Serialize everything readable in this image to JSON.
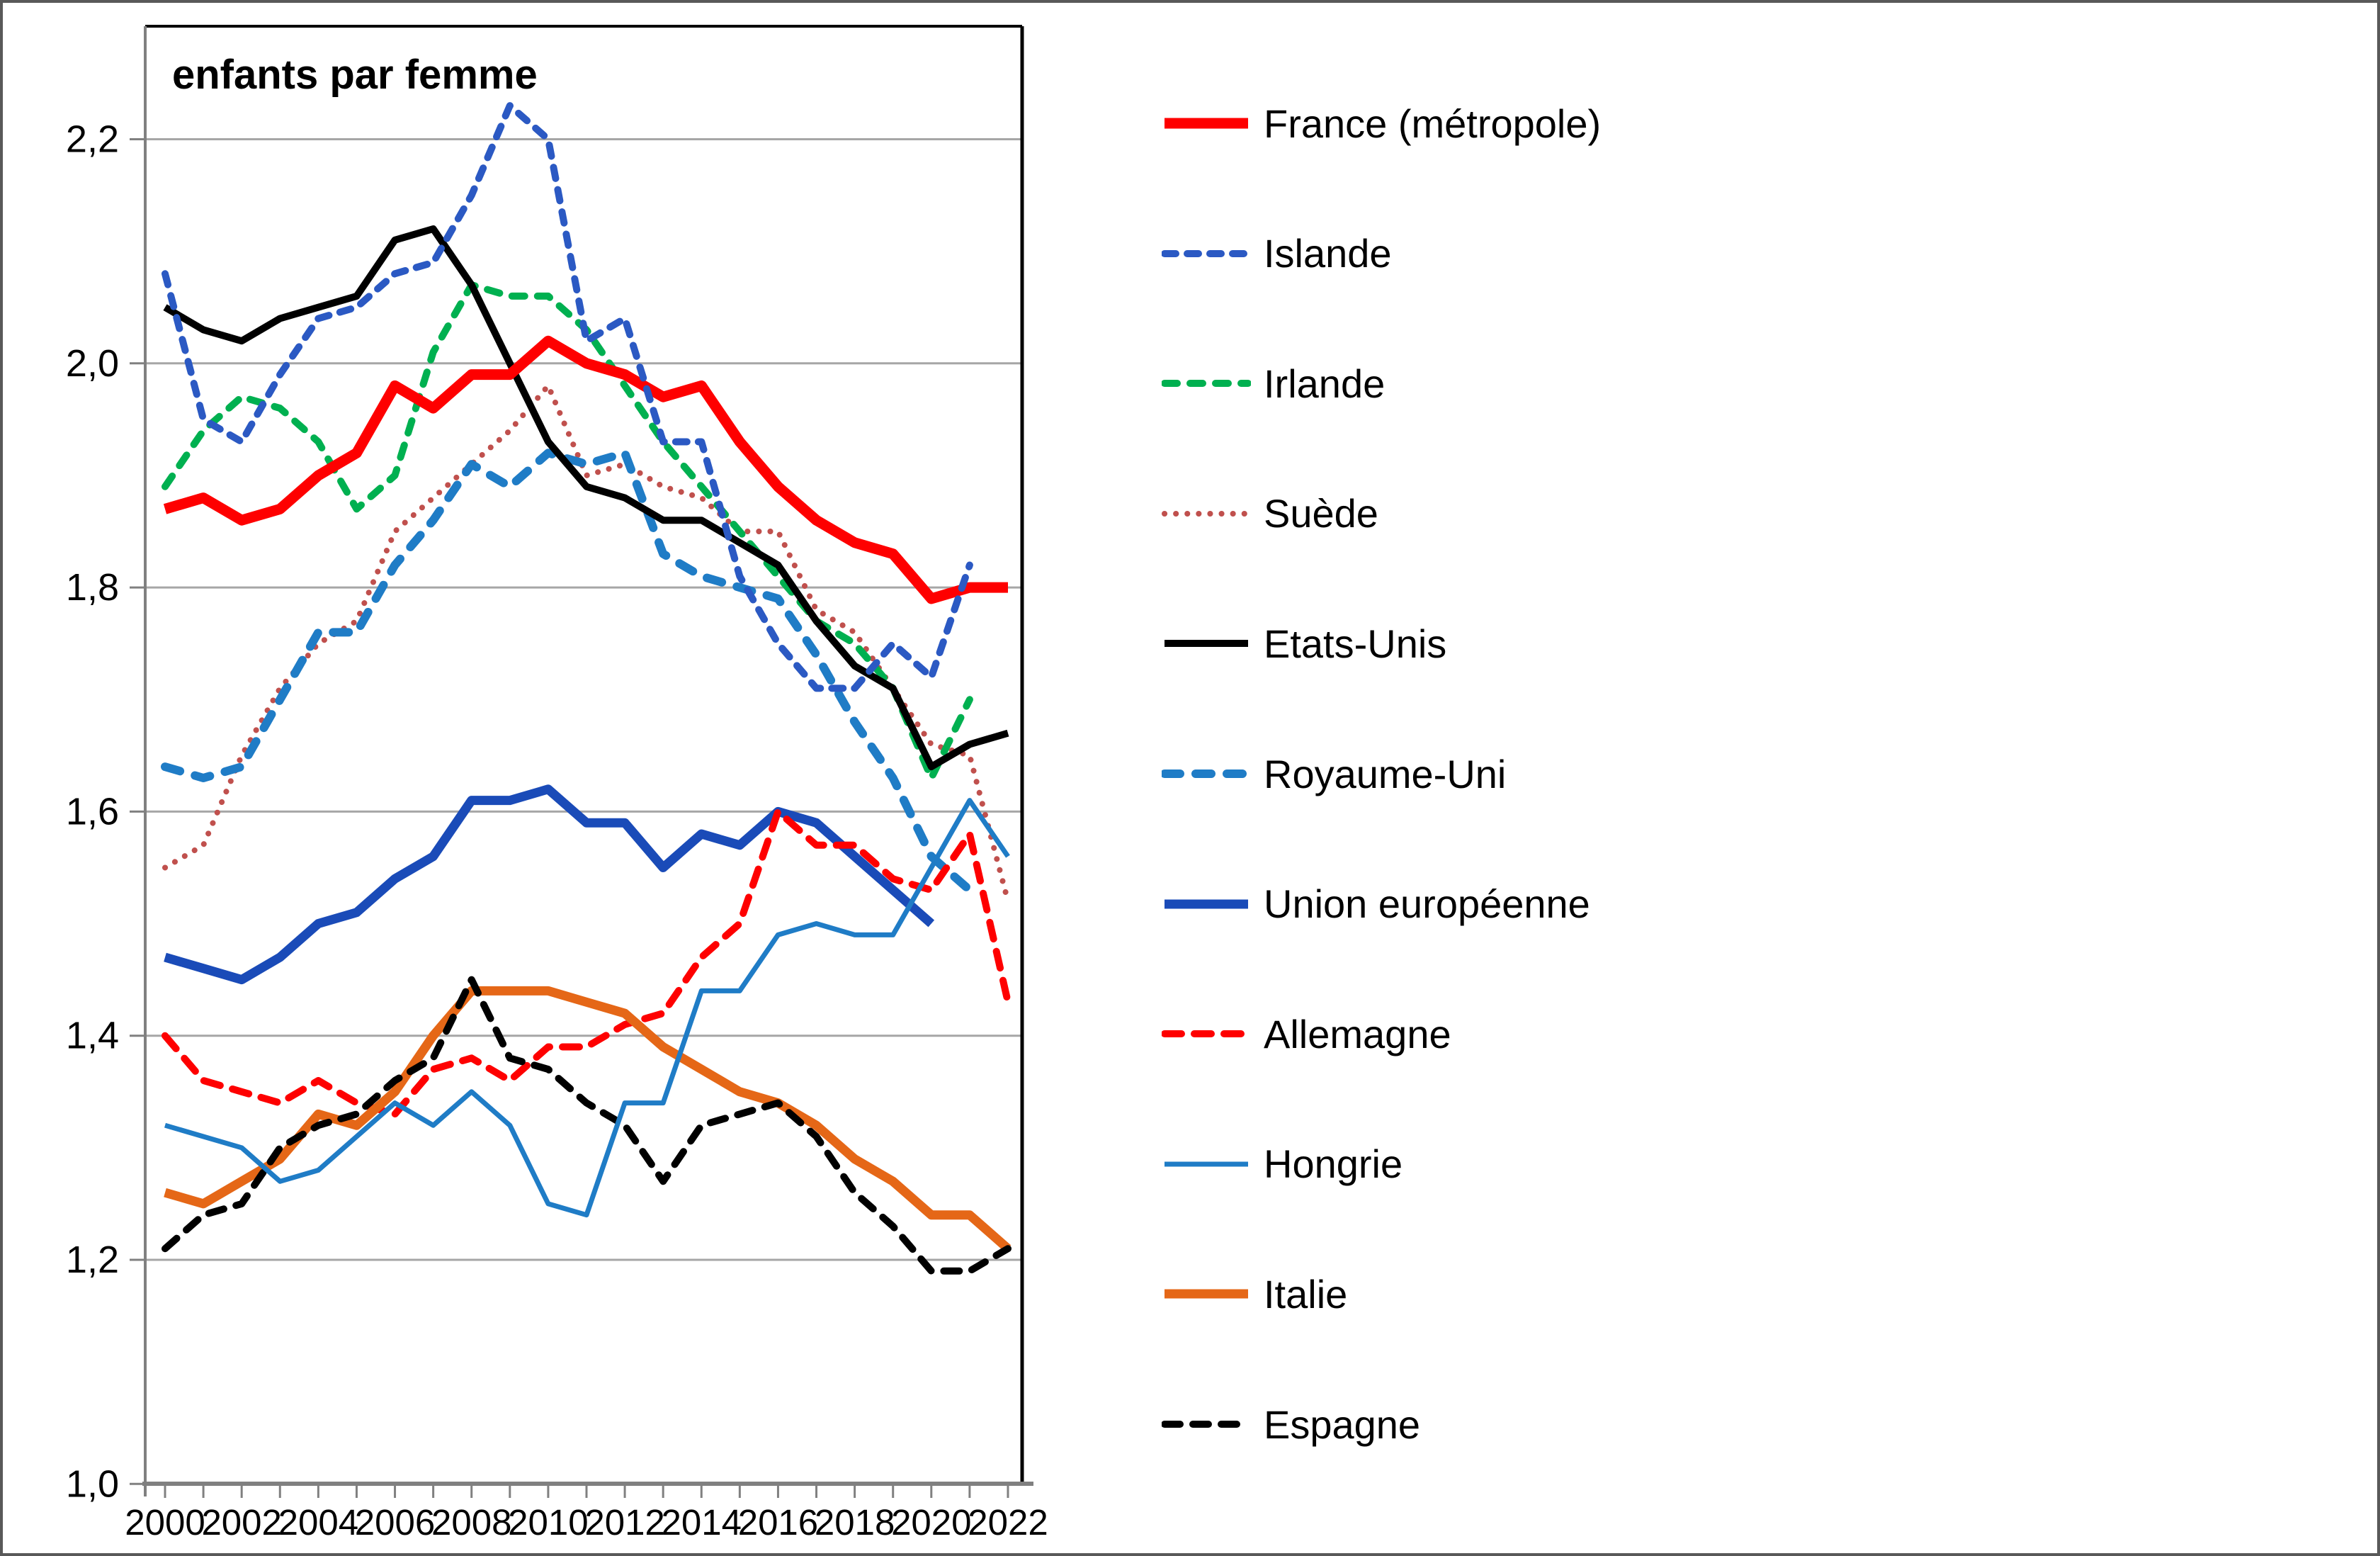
{
  "figure": {
    "title": "enfants par femme"
  },
  "chart_data": {
    "type": "line",
    "title": "enfants par femme",
    "xlabel": "",
    "ylabel": "enfants par femme",
    "x": [
      2000,
      2001,
      2002,
      2003,
      2004,
      2005,
      2006,
      2007,
      2008,
      2009,
      2010,
      2011,
      2012,
      2013,
      2014,
      2015,
      2016,
      2017,
      2018,
      2019,
      2020,
      2021,
      2022
    ],
    "xtick_labels": [
      "2000",
      "2002",
      "2004",
      "2006",
      "2008",
      "2010",
      "2012",
      "2014",
      "2016",
      "2018",
      "2020",
      "2022"
    ],
    "yticks": [
      1.0,
      1.2,
      1.4,
      1.6,
      1.8,
      2.0,
      2.2
    ],
    "ytick_labels": [
      "1,0",
      "1,2",
      "1,4",
      "1,6",
      "1,8",
      "2,0",
      "2,2"
    ],
    "ylim": [
      1.0,
      2.3
    ],
    "grid": true,
    "legend_position": "right",
    "gridline_color": "#a6a6a6",
    "axis_color": "#808080",
    "border_color": "#000000",
    "series": [
      {
        "name": "France (métropole)",
        "color": "#fe0000",
        "line_style": "solid",
        "line_width": 15,
        "dash": "",
        "values": [
          1.87,
          1.88,
          1.86,
          1.87,
          1.9,
          1.92,
          1.98,
          1.96,
          1.99,
          1.99,
          2.02,
          2.0,
          1.99,
          1.97,
          1.98,
          1.93,
          1.89,
          1.86,
          1.84,
          1.83,
          1.79,
          1.8,
          1.8
        ]
      },
      {
        "name": "Islande",
        "color": "#2b59c3",
        "line_style": "dashed",
        "line_width": 10,
        "dash": "16 16",
        "values": [
          2.08,
          1.95,
          1.93,
          1.99,
          2.04,
          2.05,
          2.08,
          2.09,
          2.15,
          2.23,
          2.2,
          2.02,
          2.04,
          1.93,
          1.93,
          1.81,
          1.75,
          1.71,
          1.71,
          1.75,
          1.72,
          1.82,
          null
        ]
      },
      {
        "name": "Irlande",
        "color": "#00b050",
        "line_style": "dashed",
        "line_width": 10,
        "dash": "18 18",
        "values": [
          1.89,
          1.94,
          1.97,
          1.96,
          1.93,
          1.87,
          1.9,
          2.01,
          2.07,
          2.06,
          2.06,
          2.03,
          1.98,
          1.93,
          1.89,
          1.85,
          1.81,
          1.77,
          1.75,
          1.71,
          1.63,
          1.7,
          null
        ]
      },
      {
        "name": "Suède",
        "color": "#c0504d",
        "line_style": "dotted",
        "line_width": 8,
        "dash": "0.1 16",
        "values": [
          1.55,
          1.57,
          1.65,
          1.71,
          1.75,
          1.77,
          1.85,
          1.88,
          1.91,
          1.94,
          1.98,
          1.9,
          1.91,
          1.89,
          1.88,
          1.85,
          1.85,
          1.78,
          1.76,
          1.71,
          1.66,
          1.65,
          1.52
        ]
      },
      {
        "name": "Etats-Unis",
        "color": "#000000",
        "line_style": "solid",
        "line_width": 10,
        "dash": "",
        "values": [
          2.05,
          2.03,
          2.02,
          2.04,
          2.05,
          2.06,
          2.11,
          2.12,
          2.07,
          2.0,
          1.93,
          1.89,
          1.88,
          1.86,
          1.86,
          1.84,
          1.82,
          1.77,
          1.73,
          1.71,
          1.64,
          1.66,
          1.67
        ]
      },
      {
        "name": "Royaume-Uni",
        "color": "#1f7cc6",
        "line_style": "dashed",
        "line_width": 12,
        "dash": "22 22",
        "values": [
          1.64,
          1.63,
          1.64,
          1.7,
          1.76,
          1.76,
          1.82,
          1.86,
          1.91,
          1.89,
          1.92,
          1.91,
          1.92,
          1.83,
          1.81,
          1.8,
          1.79,
          1.74,
          1.68,
          1.63,
          1.56,
          1.53,
          null
        ]
      },
      {
        "name": "Union européenne",
        "color": "#1a4bb8",
        "line_style": "solid",
        "line_width": 13,
        "dash": "",
        "values": [
          1.47,
          1.46,
          1.45,
          1.47,
          1.5,
          1.51,
          1.54,
          1.56,
          1.61,
          1.61,
          1.62,
          1.59,
          1.59,
          1.55,
          1.58,
          1.57,
          1.6,
          1.59,
          1.56,
          1.53,
          1.5,
          null,
          null
        ]
      },
      {
        "name": "Allemagne",
        "color": "#fe0000",
        "line_style": "dashed",
        "line_width": 10,
        "dash": "24 18",
        "values": [
          1.4,
          1.36,
          1.35,
          1.34,
          1.36,
          1.34,
          1.33,
          1.37,
          1.38,
          1.36,
          1.39,
          1.39,
          1.41,
          1.42,
          1.47,
          1.5,
          1.6,
          1.57,
          1.57,
          1.54,
          1.53,
          1.58,
          1.43
        ]
      },
      {
        "name": "Hongrie",
        "color": "#1f7cc6",
        "line_style": "solid",
        "line_width": 7,
        "dash": "",
        "values": [
          1.32,
          1.31,
          1.3,
          1.27,
          1.28,
          1.31,
          1.34,
          1.32,
          1.35,
          1.32,
          1.25,
          1.24,
          1.34,
          1.34,
          1.44,
          1.44,
          1.49,
          1.5,
          1.49,
          1.49,
          1.55,
          1.61,
          1.56
        ]
      },
      {
        "name": "Italie",
        "color": "#e56717",
        "line_style": "solid",
        "line_width": 13,
        "dash": "",
        "values": [
          1.26,
          1.25,
          1.27,
          1.29,
          1.33,
          1.32,
          1.35,
          1.4,
          1.44,
          1.44,
          1.44,
          1.43,
          1.42,
          1.39,
          1.37,
          1.35,
          1.34,
          1.32,
          1.29,
          1.27,
          1.24,
          1.24,
          1.21
        ]
      },
      {
        "name": "Espagne",
        "color": "#000000",
        "line_style": "dashed",
        "line_width": 10,
        "dash": "22 18",
        "values": [
          1.21,
          1.24,
          1.25,
          1.3,
          1.32,
          1.33,
          1.36,
          1.38,
          1.45,
          1.38,
          1.37,
          1.34,
          1.32,
          1.27,
          1.32,
          1.33,
          1.34,
          1.31,
          1.26,
          1.23,
          1.19,
          1.19,
          1.21
        ]
      }
    ]
  }
}
